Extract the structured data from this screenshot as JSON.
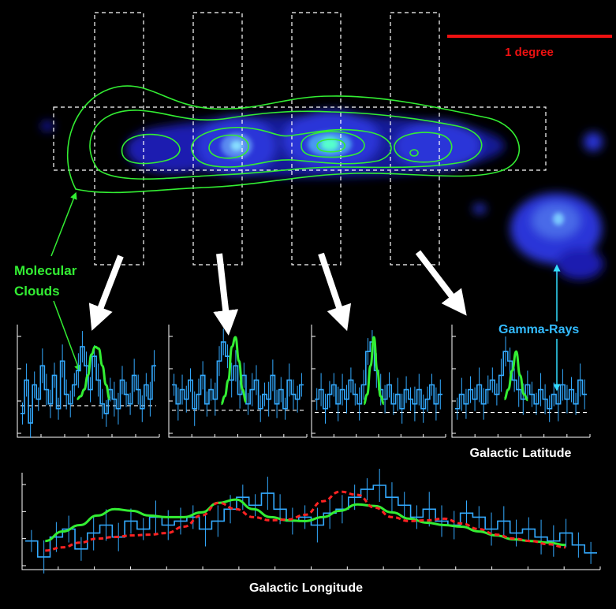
{
  "colors": {
    "background": "#000000",
    "molecular": "#33ee33",
    "gamma": "#33aaff",
    "model": "#ff2222",
    "scale_bar": "#ee1111",
    "frame": "#ffffff"
  },
  "labels": {
    "scale_bar": "1 degree",
    "molecular_clouds_line1": "Molecular",
    "molecular_clouds_line2": "Clouds",
    "gamma_rays": "Gamma-Rays",
    "galactic_latitude": "Galactic Latitude",
    "galactic_longitude": "Galactic Longitude"
  },
  "chart_data": [
    {
      "type": "line",
      "panel": "latitude-1",
      "xlabel": "",
      "ylabel": "",
      "series": [
        {
          "values": [
            0.2,
            0.55,
            0.1,
            0.5,
            0.35,
            0.7,
            0.45,
            0.3,
            0.6,
            0.25,
            0.75,
            0.4,
            0.3,
            0.5,
            0.65,
            0.9,
            0.7,
            0.45,
            0.8,
            0.55,
            0.3,
            0.2,
            0.45,
            0.35,
            0.25,
            0.55,
            0.4,
            0.3,
            0.6,
            0.45,
            0.25,
            0.5,
            0.35,
            0.7
          ]
        },
        {
          "values": [
            0.35,
            0.38,
            0.45,
            0.6,
            0.82,
            0.9,
            0.88,
            0.7,
            0.5,
            0.35
          ]
        }
      ]
    },
    {
      "type": "line",
      "panel": "latitude-2",
      "xlabel": "",
      "ylabel": "",
      "series": [
        {
          "values": [
            0.5,
            0.3,
            0.45,
            0.35,
            0.55,
            0.25,
            0.4,
            0.6,
            0.3,
            0.45,
            0.35,
            0.75,
            0.95,
            0.8,
            0.55,
            0.7,
            0.4,
            0.6,
            0.3,
            0.45,
            0.55,
            0.25,
            0.4,
            0.35,
            0.6,
            0.3,
            0.45,
            0.25,
            0.55,
            0.4,
            0.35,
            0.5
          ]
        },
        {
          "values": [
            0.3,
            0.38,
            0.55,
            0.9,
            1.0,
            0.75,
            0.45,
            0.32
          ]
        }
      ]
    },
    {
      "type": "line",
      "panel": "latitude-3",
      "xlabel": "",
      "ylabel": "",
      "series": [
        {
          "values": [
            0.35,
            0.45,
            0.25,
            0.4,
            0.5,
            0.3,
            0.45,
            0.35,
            0.55,
            0.4,
            0.3,
            0.5,
            0.85,
            0.95,
            0.65,
            0.45,
            0.35,
            0.5,
            0.3,
            0.4,
            0.25,
            0.45,
            0.35,
            0.3,
            0.45,
            0.25,
            0.35,
            0.5,
            0.3,
            0.4
          ]
        },
        {
          "values": [
            0.3,
            0.4,
            0.7,
            1.0,
            0.65,
            0.38,
            0.3
          ]
        }
      ]
    },
    {
      "type": "line",
      "panel": "latitude-4",
      "xlabel": "Galactic Latitude",
      "ylabel": "",
      "series": [
        {
          "values": [
            0.25,
            0.4,
            0.3,
            0.45,
            0.35,
            0.5,
            0.3,
            0.45,
            0.55,
            0.4,
            0.6,
            0.85,
            0.75,
            0.55,
            0.45,
            0.35,
            0.5,
            0.4,
            0.3,
            0.45,
            0.35,
            0.25,
            0.4,
            0.3,
            0.5,
            0.35,
            0.45,
            0.3,
            0.55,
            0.4
          ]
        },
        {
          "values": [
            0.35,
            0.45,
            0.65,
            0.85,
            0.6,
            0.4,
            0.34
          ]
        }
      ]
    },
    {
      "type": "line",
      "panel": "longitude",
      "xlabel": "Galactic Longitude",
      "ylabel": "",
      "series": [
        {
          "values": [
            0.3,
            0.1,
            0.35,
            0.45,
            0.2,
            0.4,
            0.5,
            0.35,
            0.55,
            0.45,
            0.6,
            0.5,
            0.55,
            0.6,
            0.45,
            0.55,
            0.7,
            0.85,
            0.75,
            0.9,
            0.7,
            0.55,
            0.6,
            0.5,
            0.65,
            0.7,
            0.85,
            0.95,
            1.0,
            0.85,
            0.75,
            0.6,
            0.7,
            0.55,
            0.5,
            0.65,
            0.6,
            0.45,
            0.55,
            0.4,
            0.45,
            0.35,
            0.3,
            0.4,
            0.25,
            0.15
          ]
        },
        {
          "values": [
            0.3,
            0.42,
            0.5,
            0.62,
            0.7,
            0.68,
            0.62,
            0.6,
            0.6,
            0.66,
            0.78,
            0.82,
            0.7,
            0.6,
            0.56,
            0.55,
            0.6,
            0.68,
            0.76,
            0.74,
            0.66,
            0.58,
            0.53,
            0.5,
            0.48,
            0.42,
            0.37,
            0.32,
            0.3,
            0.28,
            0.25
          ]
        },
        {
          "values": [
            0.18,
            0.22,
            0.28,
            0.33,
            0.35,
            0.37,
            0.38,
            0.4,
            0.48,
            0.62,
            0.78,
            0.7,
            0.6,
            0.56,
            0.57,
            0.63,
            0.8,
            0.92,
            0.88,
            0.72,
            0.6,
            0.55,
            0.56,
            0.58,
            0.52,
            0.45,
            0.38,
            0.33,
            0.3,
            0.26,
            0.22
          ]
        }
      ]
    }
  ]
}
